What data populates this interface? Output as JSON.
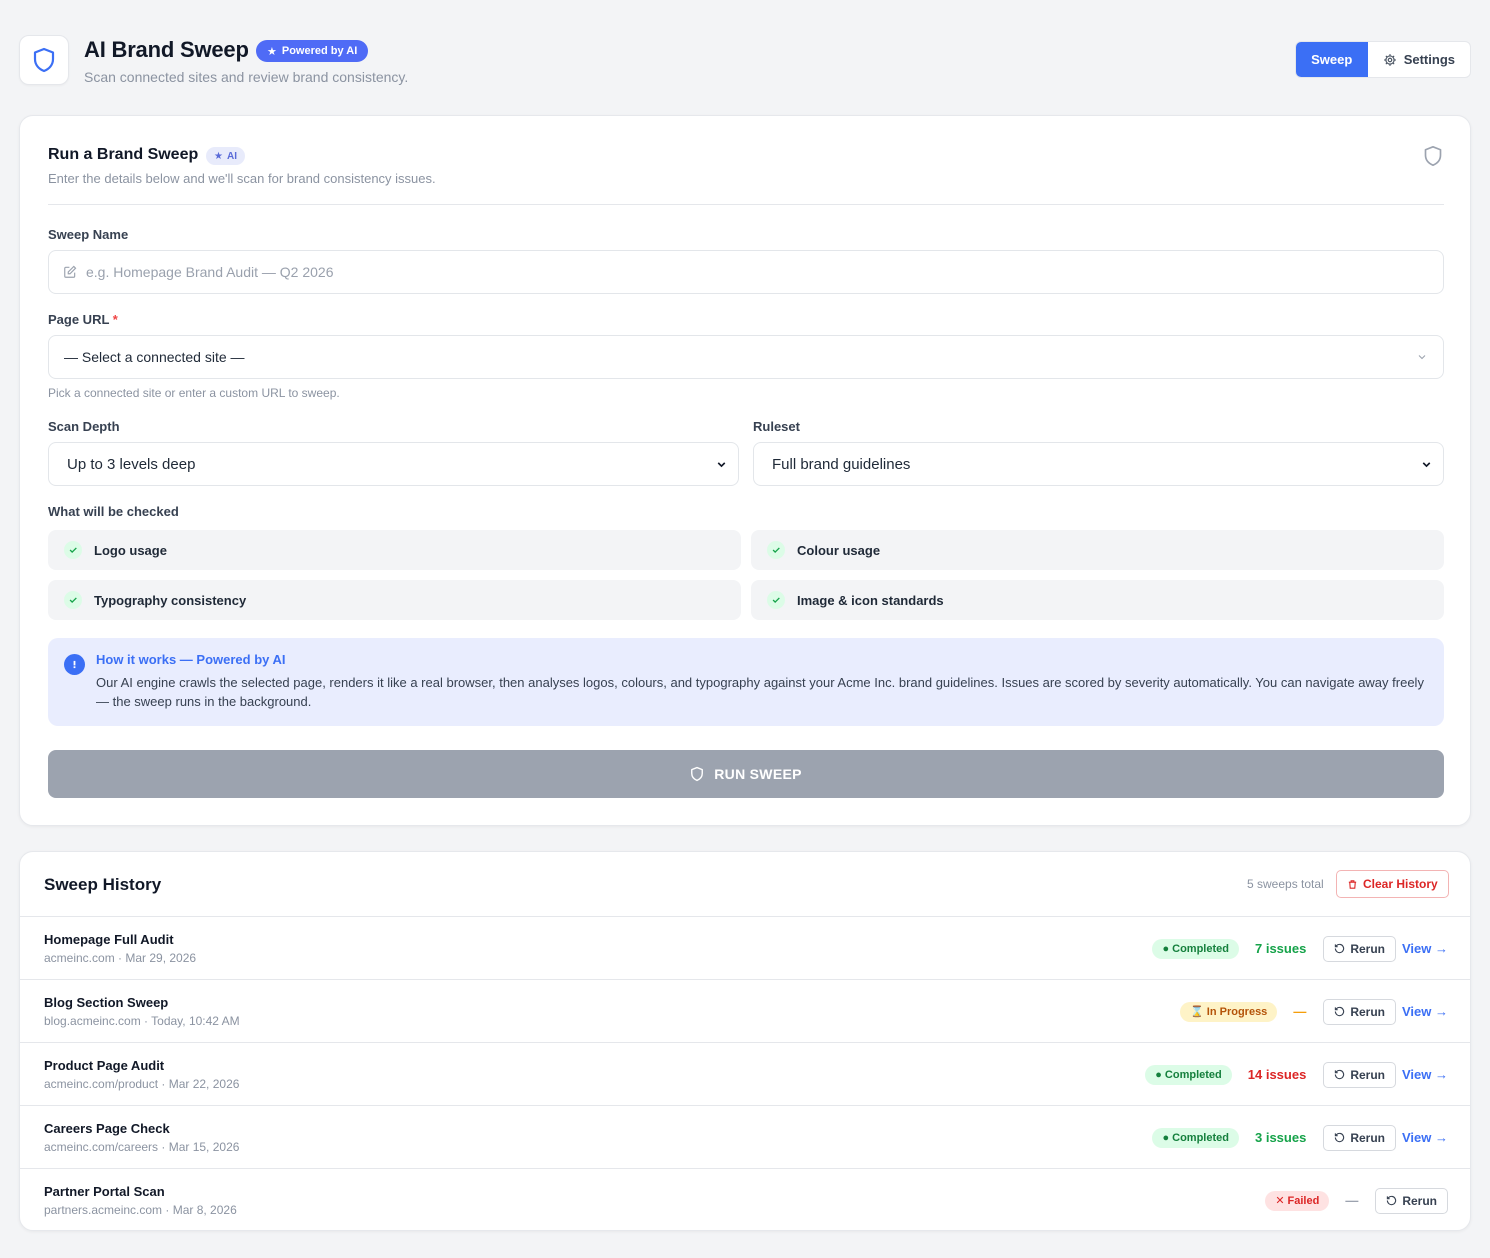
{
  "header": {
    "title": "AI Brand Sweep",
    "badge": "Powered by AI",
    "subtitle": "Scan connected sites and review brand consistency.",
    "tabs": [
      {
        "label": "Sweep",
        "active": true,
        "icon": "none"
      },
      {
        "label": "Settings",
        "active": false,
        "icon": "gear-icon"
      }
    ]
  },
  "form": {
    "title": "Run a Brand Sweep",
    "badge": "AI",
    "description": "Enter the details below and we'll scan for brand consistency issues.",
    "sweep_name": {
      "label": "Sweep Name",
      "value": "",
      "placeholder": "e.g. Homepage Brand Audit — Q2 2026"
    },
    "page_url": {
      "label": "Page URL",
      "required_mark": "*",
      "selected": "— Select a connected site —",
      "hint": "Pick a connected site or enter a custom URL to sweep."
    },
    "scan_depth": {
      "label": "Scan Depth",
      "selected": "Up to 3 levels deep"
    },
    "ruleset": {
      "label": "Ruleset",
      "selected": "Full brand guidelines"
    },
    "checks": {
      "label": "What will be checked",
      "items": [
        "Logo usage",
        "Colour usage",
        "Typography consistency",
        "Image & icon standards"
      ]
    },
    "info": {
      "title": "How it works — Powered by AI",
      "body": "Our AI engine crawls the selected page, renders it like a real browser, then analyses logos, colours, and typography against your Acme Inc. brand guidelines. Issues are scored by severity automatically. You can navigate away freely — the sweep runs in the background."
    },
    "run_button": "RUN SWEEP"
  },
  "history": {
    "title": "Sweep History",
    "total": "5 sweeps total",
    "clear_label": "Clear History",
    "rerun_label": "Rerun",
    "view_label": "View →",
    "rows": [
      {
        "name": "Homepage Full Audit",
        "meta": "acmeinc.com · Mar 29, 2026",
        "status": "Completed",
        "issues": "7 issues"
      },
      {
        "name": "Blog Section Sweep",
        "meta": "blog.acmeinc.com · Today, 10:42 AM",
        "status": "In Progress",
        "issues": "—"
      },
      {
        "name": "Product Page Audit",
        "meta": "acmeinc.com/product · Mar 22, 2026",
        "status": "Completed",
        "issues": "14 issues"
      },
      {
        "name": "Careers Page Check",
        "meta": "acmeinc.com/careers · Mar 15, 2026",
        "status": "Completed",
        "issues": "3 issues"
      },
      {
        "name": "Partner Portal Scan",
        "meta": "partners.acmeinc.com · Mar 8, 2026",
        "status": "Failed",
        "issues": "—"
      }
    ]
  },
  "colors": {
    "primary": "#3b6ff5",
    "completed": "#15803d",
    "in_progress": "#b45309",
    "failed": "#dc2626",
    "issues_low": "#16a34a",
    "issues_high": "#dc2626",
    "issues_pending": "#f59e0b",
    "issues_none": "#9ca3af",
    "run_disabled": "#9ca3af"
  }
}
